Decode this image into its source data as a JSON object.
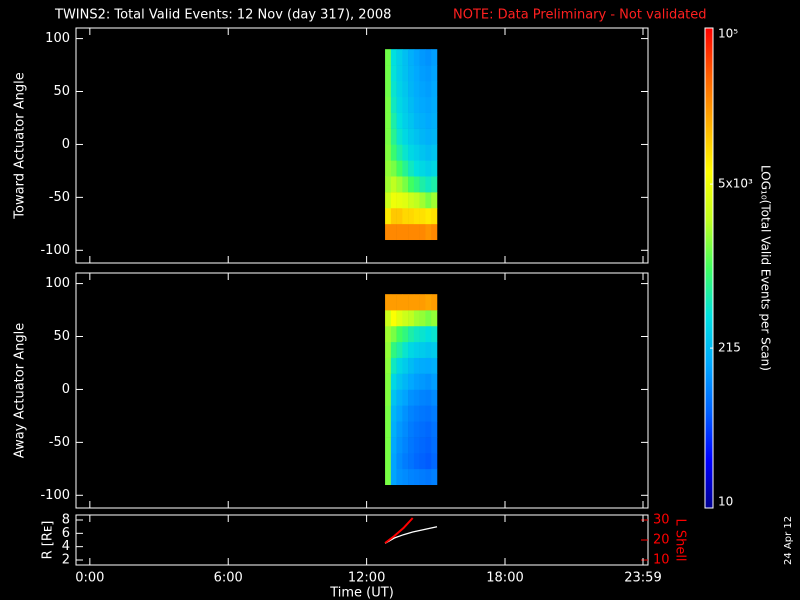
{
  "title": "TWINS2: Total Valid Events: 12 Nov (day 317), 2008",
  "note": "NOTE: Data Preliminary - Not validated",
  "stamp": "24 Apr 12",
  "colorbar": {
    "label": "LOG₁₀(Total Valid Events per Scan)",
    "lim": [
      10,
      100000
    ],
    "log": true,
    "ticks": [
      {
        "value": 100000,
        "label": "10⁵"
      },
      {
        "value": 5000,
        "label": "5x10³"
      },
      215,
      10
    ],
    "colorscale": [
      "#000090",
      "#0000ff",
      "#0060ff",
      "#00a8ff",
      "#00e0e0",
      "#40ff60",
      "#c0ff20",
      "#ffff00",
      "#ffb000",
      "#ff6000",
      "#ff0000"
    ]
  },
  "chart_data": [
    {
      "type": "heatmap",
      "ylabel": "Toward Actuator Angle",
      "xlim": [
        -0.6,
        24.2
      ],
      "ylim": [
        -112,
        110
      ],
      "yticks": [
        -100,
        -50,
        0,
        50,
        100
      ],
      "xbins": [
        12.8,
        13.05,
        13.3,
        13.55,
        13.8,
        14.05,
        14.3,
        14.55,
        14.8,
        15.05
      ],
      "ybins": [
        -90,
        -75,
        -60,
        -45,
        -30,
        -15,
        0,
        15,
        30,
        45,
        60,
        75,
        90
      ],
      "z": [
        [
          25000,
          25000,
          25000,
          25000,
          25000,
          25000,
          25000,
          22000,
          25000
        ],
        [
          8000,
          12000,
          12000,
          10000,
          10000,
          9000,
          9000,
          8000,
          9000
        ],
        [
          3000,
          5000,
          4500,
          4000,
          3000,
          2500,
          2000,
          1500,
          2000
        ],
        [
          2000,
          2500,
          2000,
          1500,
          1000,
          800,
          600,
          500,
          600
        ],
        [
          1800,
          1500,
          1000,
          700,
          500,
          400,
          350,
          300,
          350
        ],
        [
          1600,
          900,
          600,
          450,
          350,
          300,
          250,
          220,
          250
        ],
        [
          1500,
          700,
          450,
          350,
          280,
          240,
          200,
          180,
          200
        ],
        [
          1500,
          600,
          400,
          300,
          250,
          200,
          180,
          160,
          180
        ],
        [
          1500,
          500,
          350,
          280,
          220,
          180,
          160,
          150,
          170
        ],
        [
          1400,
          450,
          320,
          260,
          200,
          170,
          150,
          140,
          160
        ],
        [
          1400,
          420,
          300,
          240,
          190,
          160,
          140,
          130,
          150
        ],
        [
          1400,
          400,
          300,
          230,
          180,
          150,
          130,
          120,
          140
        ]
      ]
    },
    {
      "type": "heatmap",
      "ylabel": "Away Actuator Angle",
      "xlim": [
        -0.6,
        24.2
      ],
      "ylim": [
        -112,
        110
      ],
      "yticks": [
        -100,
        -50,
        0,
        50,
        100
      ],
      "xbins": [
        12.8,
        13.05,
        13.3,
        13.55,
        13.8,
        14.05,
        14.3,
        14.55,
        14.8,
        15.05
      ],
      "ybins": [
        -90,
        -75,
        -60,
        -45,
        -30,
        -15,
        0,
        15,
        30,
        45,
        60,
        75,
        90
      ],
      "z": [
        [
          1500,
          150,
          120,
          110,
          100,
          95,
          90,
          85,
          95
        ],
        [
          1500,
          150,
          110,
          90,
          80,
          70,
          65,
          60,
          70
        ],
        [
          1500,
          160,
          120,
          100,
          85,
          75,
          70,
          65,
          75
        ],
        [
          1500,
          180,
          130,
          110,
          90,
          80,
          75,
          70,
          80
        ],
        [
          1500,
          200,
          150,
          120,
          100,
          90,
          85,
          80,
          90
        ],
        [
          1600,
          250,
          180,
          150,
          120,
          110,
          100,
          95,
          110
        ],
        [
          1600,
          350,
          250,
          200,
          160,
          140,
          130,
          120,
          140
        ],
        [
          1700,
          500,
          350,
          280,
          220,
          180,
          170,
          160,
          180
        ],
        [
          1800,
          800,
          600,
          450,
          350,
          300,
          280,
          250,
          280
        ],
        [
          2000,
          1500,
          1000,
          800,
          600,
          500,
          450,
          400,
          450
        ],
        [
          3000,
          6000,
          4000,
          3000,
          2500,
          2000,
          1800,
          1500,
          1800
        ],
        [
          20000,
          20000,
          20000,
          20000,
          20000,
          20000,
          20000,
          18000,
          20000
        ]
      ]
    },
    {
      "type": "line",
      "xlabel": "Time (UT)",
      "ylabel": "R [Rᴇ]",
      "y2label": "L Shell",
      "y2color": "#ff0000",
      "xlim": [
        -0.6,
        24.2
      ],
      "xticks": [
        {
          "value": 0,
          "label": "0:00"
        },
        {
          "value": 6,
          "label": "6:00"
        },
        {
          "value": 12,
          "label": "12:00"
        },
        {
          "value": 18,
          "label": "18:00"
        },
        {
          "value": 23.983,
          "label": "23:59"
        }
      ],
      "ylim": [
        1.25,
        8.75
      ],
      "yticks": [
        2,
        4,
        6,
        8
      ],
      "y2lim": [
        7.5,
        32.5
      ],
      "y2ticks": [
        10,
        20,
        30
      ],
      "series": [
        {
          "color": "#ffffff",
          "x": [
            12.8,
            13.2,
            13.6,
            14.0,
            14.4,
            14.8,
            15.05
          ],
          "values": [
            4.5,
            5.3,
            5.8,
            6.2,
            6.5,
            6.8,
            7.0
          ]
        },
        {
          "color": "#ff0000",
          "axis": "y2",
          "x": [
            12.8,
            13.2,
            13.6,
            14.0
          ],
          "values": [
            18.5,
            22,
            26,
            31
          ]
        }
      ]
    }
  ]
}
